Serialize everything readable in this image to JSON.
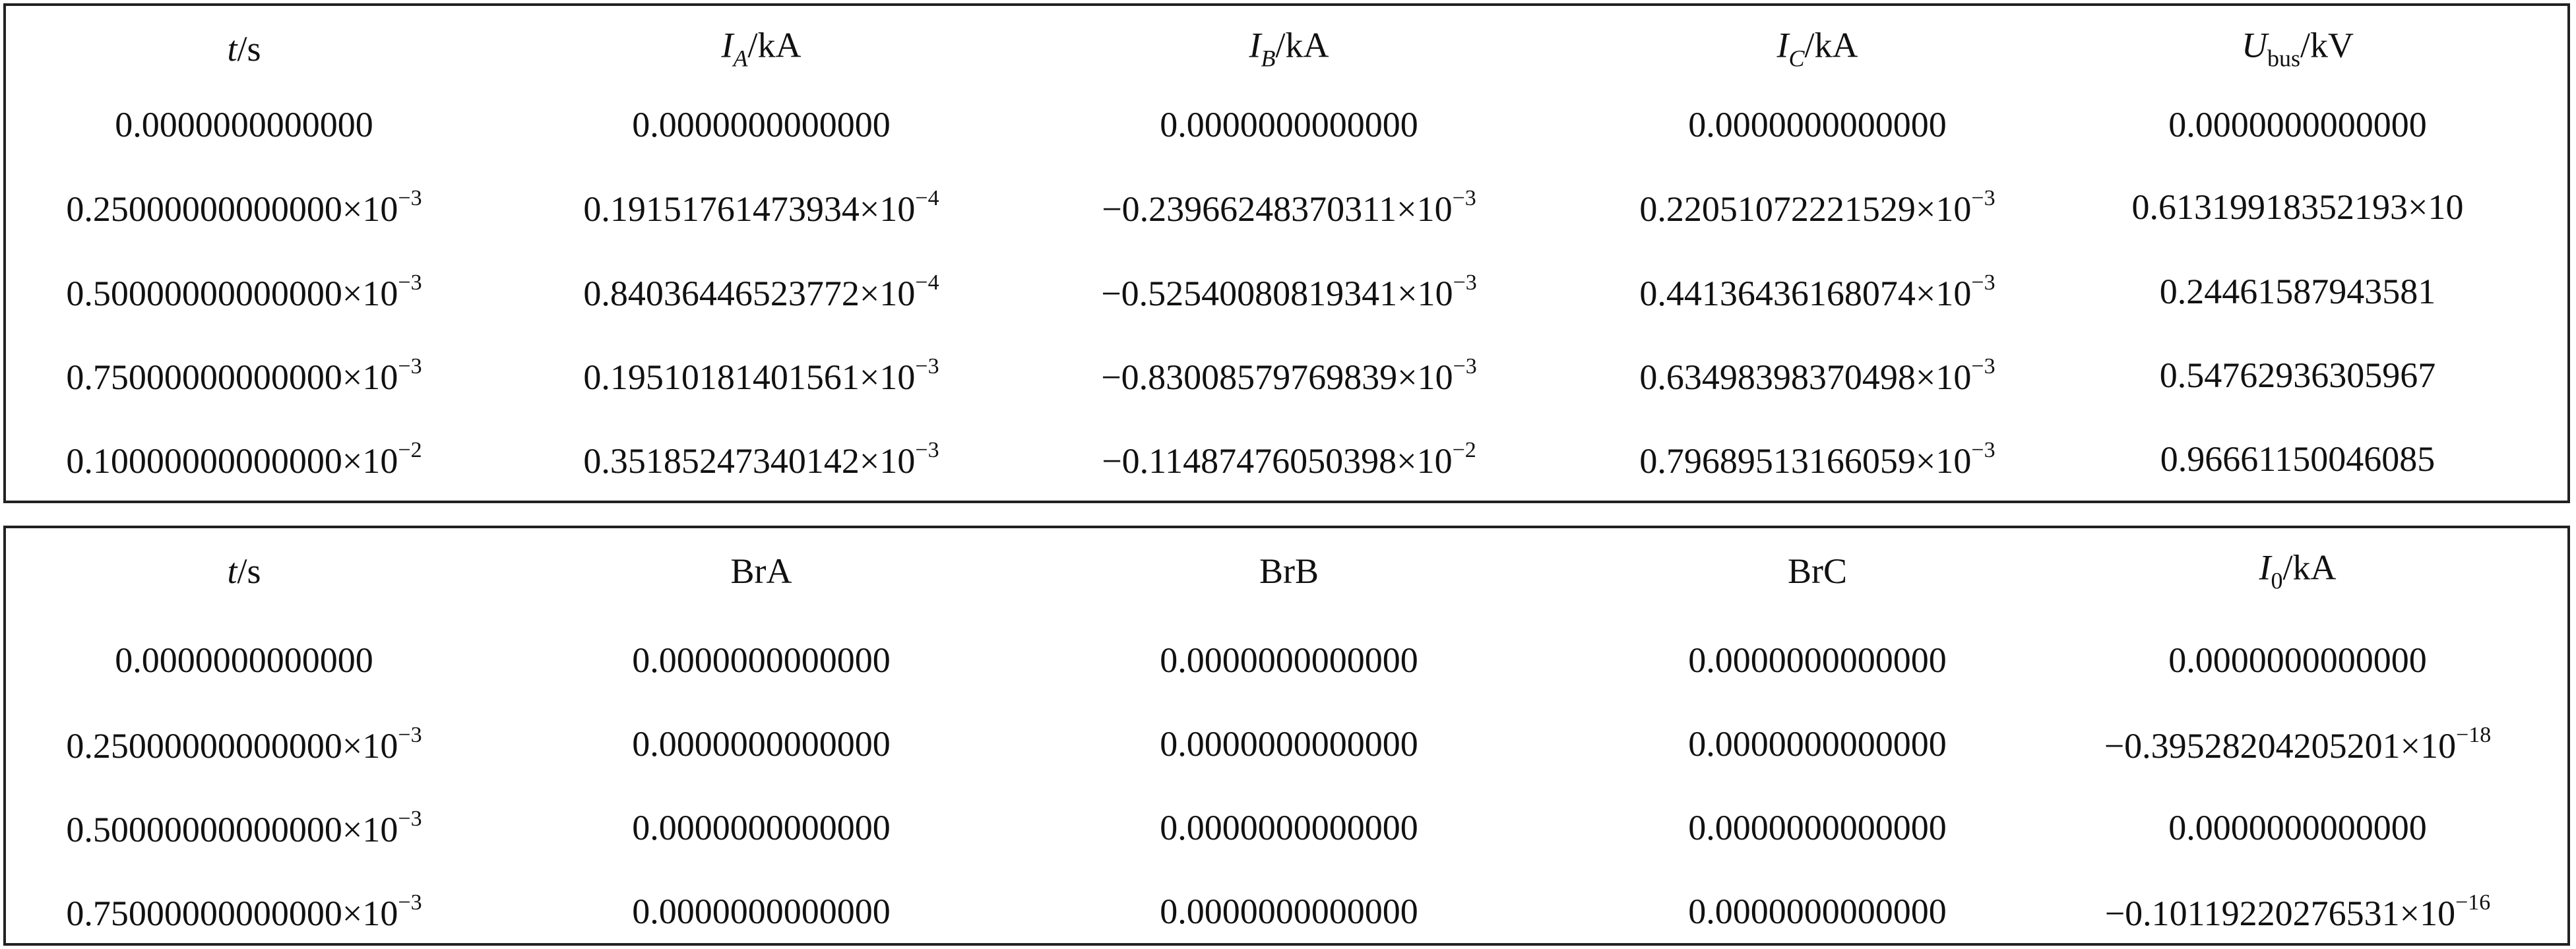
{
  "tables": [
    {
      "header": [
        [
          {
            "text": "t",
            "style": "italic"
          },
          {
            "text": "/s"
          }
        ],
        [
          {
            "text": "I",
            "style": "italic"
          },
          {
            "text": "A",
            "style": "sub-italic"
          },
          {
            "text": "/kA"
          }
        ],
        [
          {
            "text": "I",
            "style": "italic"
          },
          {
            "text": "B",
            "style": "sub-italic"
          },
          {
            "text": "/kA"
          }
        ],
        [
          {
            "text": "I",
            "style": "italic"
          },
          {
            "text": "C",
            "style": "sub-italic"
          },
          {
            "text": "/kA"
          }
        ],
        [
          {
            "text": "U",
            "style": "italic"
          },
          {
            "text": "bus",
            "style": "sub"
          },
          {
            "text": "/kV"
          }
        ]
      ],
      "rows": [
        [
          "0.0000000000000",
          "0.0000000000000",
          "0.0000000000000",
          "0.0000000000000",
          "0.0000000000000"
        ],
        [
          {
            "text": "0.25000000000000×10",
            "sup": "−3"
          },
          {
            "text": "0.19151761473934×10",
            "sup": "−4"
          },
          {
            "text": "−0.23966248370311×10",
            "sup": "−3"
          },
          {
            "text": "0.22051072221529×10",
            "sup": "−3"
          },
          "0.61319918352193×10"
        ],
        [
          {
            "text": "0.50000000000000×10",
            "sup": "−3"
          },
          {
            "text": "0.84036446523772×10",
            "sup": "−4"
          },
          {
            "text": "−0.52540080819341×10",
            "sup": "−3"
          },
          {
            "text": "0.44136436168074×10",
            "sup": "−3"
          },
          "0.24461587943581"
        ],
        [
          {
            "text": "0.75000000000000×10",
            "sup": "−3"
          },
          {
            "text": "0.19510181401561×10",
            "sup": "−3"
          },
          {
            "text": "−0.83008579769839×10",
            "sup": "−3"
          },
          {
            "text": "0.63498398370498×10",
            "sup": "−3"
          },
          "0.54762936305967"
        ],
        [
          {
            "text": "0.10000000000000×10",
            "sup": "−2"
          },
          {
            "text": "0.35185247340142×10",
            "sup": "−3"
          },
          {
            "text": "−0.11487476050398×10",
            "sup": "−2"
          },
          {
            "text": "0.79689513166059×10",
            "sup": "−3"
          },
          "0.96661150046085"
        ]
      ]
    },
    {
      "header": [
        [
          {
            "text": "t",
            "style": "italic"
          },
          {
            "text": "/s"
          }
        ],
        [
          {
            "text": "BrA"
          }
        ],
        [
          {
            "text": "BrB"
          }
        ],
        [
          {
            "text": "BrC"
          }
        ],
        [
          {
            "text": "I",
            "style": "italic"
          },
          {
            "text": "0",
            "style": "sub"
          },
          {
            "text": "/kA"
          }
        ]
      ],
      "rows": [
        [
          "0.0000000000000",
          "0.0000000000000",
          "0.0000000000000",
          "0.0000000000000",
          "0.0000000000000"
        ],
        [
          {
            "text": "0.25000000000000×10",
            "sup": "−3"
          },
          "0.0000000000000",
          "0.0000000000000",
          "0.0000000000000",
          {
            "text": "−0.39528204205201×10",
            "sup": "−18"
          }
        ],
        [
          {
            "text": "0.50000000000000×10",
            "sup": "−3"
          },
          "0.0000000000000",
          "0.0000000000000",
          "0.0000000000000",
          "0.0000000000000"
        ],
        [
          {
            "text": "0.75000000000000×10",
            "sup": "−3"
          },
          "0.0000000000000",
          "0.0000000000000",
          "0.0000000000000",
          {
            "text": "−0.10119220276531×10",
            "sup": "−16"
          }
        ]
      ]
    }
  ]
}
